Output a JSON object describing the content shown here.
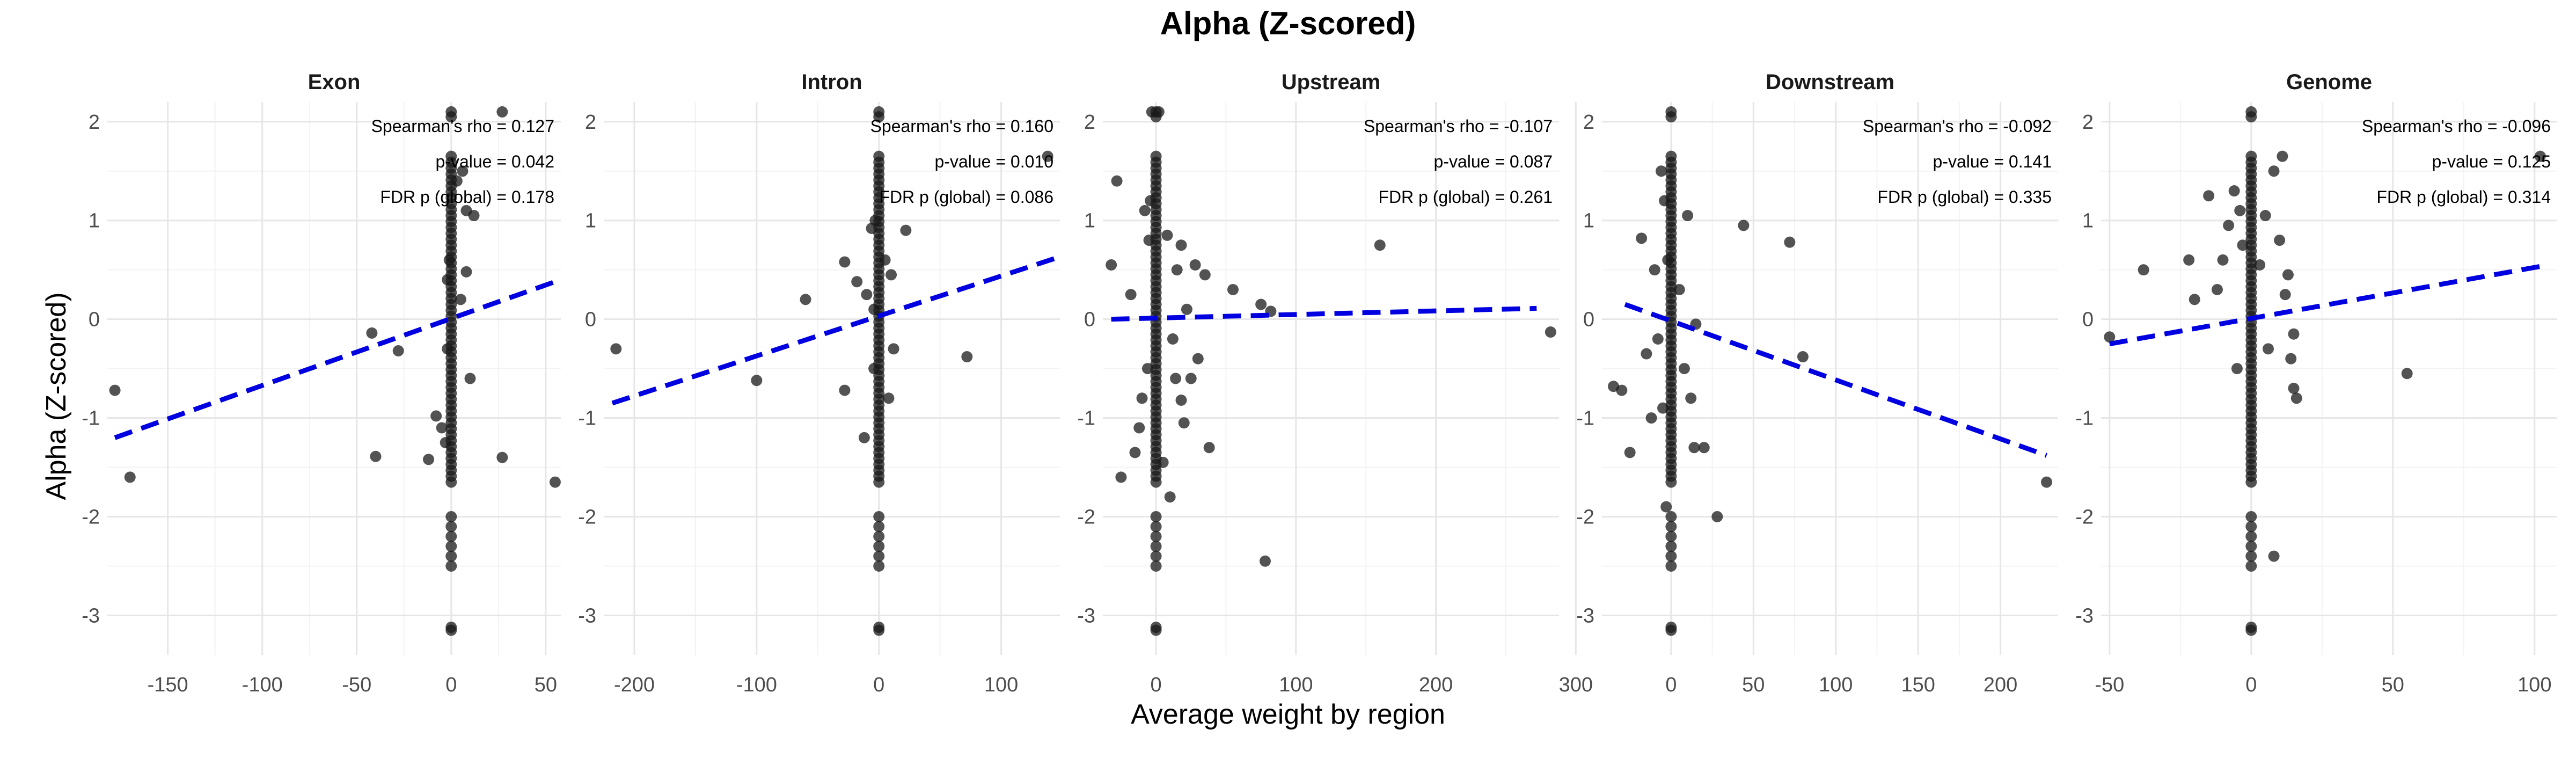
{
  "chart_data": {
    "type": "scatter",
    "title": "Alpha (Z-scored)",
    "xlabel": "Average weight by region",
    "ylabel": "Alpha (Z-scored)",
    "ylim": [
      -3.4,
      2.2
    ],
    "yticks": [
      -3,
      -2,
      -1,
      0,
      1,
      2
    ],
    "ytick_labels": [
      "-3",
      "-2",
      "-1",
      "0",
      "1",
      "2"
    ],
    "colors": {
      "points": "#1a1a1a",
      "trend": "#0000e0",
      "grid_major": "#e6e6e6",
      "grid_minor": "#f3f3f3"
    },
    "facets": [
      {
        "name": "Exon",
        "xlim": [
          -182,
          58
        ],
        "xticks": [
          -150,
          -100,
          -50,
          0,
          50
        ],
        "xtick_labels": [
          "-150",
          "-100",
          "-50",
          "0",
          "50"
        ],
        "stats": [
          "Spearman's rho = 0.127",
          "p-value = 0.042",
          "FDR p (global) = 0.178"
        ],
        "trend": {
          "x1": -178,
          "y1": -1.2,
          "x2": 55,
          "y2": 0.38
        },
        "points": [
          [
            -178,
            -0.72
          ],
          [
            -170,
            -1.6
          ],
          [
            -42,
            -0.14
          ],
          [
            -40,
            -1.39
          ],
          [
            -28,
            -0.32
          ],
          [
            -12,
            -1.42
          ],
          [
            -8,
            -0.98
          ],
          [
            -5,
            -1.1
          ],
          [
            -3,
            -1.25
          ],
          [
            -2,
            0.4
          ],
          [
            -2,
            -0.3
          ],
          [
            -1,
            0.6
          ],
          [
            3,
            1.4
          ],
          [
            5,
            0.2
          ],
          [
            6,
            1.5
          ],
          [
            8,
            1.1
          ],
          [
            8,
            0.48
          ],
          [
            10,
            -0.6
          ],
          [
            12,
            1.05
          ],
          [
            27,
            -1.4
          ],
          [
            27,
            2.1
          ],
          [
            55,
            -1.65
          ]
        ]
      },
      {
        "name": "Intron",
        "xlim": [
          -225,
          148
        ],
        "xticks": [
          -200,
          -100,
          0,
          100
        ],
        "xtick_labels": [
          "-200",
          "-100",
          "0",
          "100"
        ],
        "stats": [
          "Spearman's rho = 0.160",
          "p-value = 0.010",
          "FDR p (global) = 0.086"
        ],
        "trend": {
          "x1": -218,
          "y1": -0.85,
          "x2": 145,
          "y2": 0.62
        },
        "points": [
          [
            -215,
            -0.3
          ],
          [
            -100,
            -0.62
          ],
          [
            -60,
            0.2
          ],
          [
            -28,
            0.58
          ],
          [
            -28,
            -0.72
          ],
          [
            -18,
            0.38
          ],
          [
            -12,
            -1.2
          ],
          [
            -10,
            0.25
          ],
          [
            -6,
            0.92
          ],
          [
            -4,
            0.1
          ],
          [
            -4,
            -0.5
          ],
          [
            -3,
            1.0
          ],
          [
            5,
            0.6
          ],
          [
            8,
            -0.8
          ],
          [
            10,
            0.45
          ],
          [
            12,
            -0.3
          ],
          [
            22,
            0.9
          ],
          [
            72,
            -0.38
          ],
          [
            138,
            1.65
          ]
        ]
      },
      {
        "name": "Upstream",
        "xlim": [
          -38,
          288
        ],
        "xticks": [
          0,
          100,
          200,
          300
        ],
        "xtick_labels": [
          "0",
          "100",
          "200",
          "300"
        ],
        "stats": [
          "Spearman's rho = -0.107",
          "p-value = 0.087",
          "FDR p (global) = 0.261"
        ],
        "trend": {
          "x1": -32,
          "y1": 0.0,
          "x2": 272,
          "y2": 0.11
        },
        "points": [
          [
            -32,
            0.55
          ],
          [
            -28,
            1.4
          ],
          [
            -25,
            -1.6
          ],
          [
            -18,
            0.25
          ],
          [
            -15,
            -1.35
          ],
          [
            -12,
            -1.1
          ],
          [
            -10,
            -0.8
          ],
          [
            -8,
            1.1
          ],
          [
            -6,
            -0.5
          ],
          [
            -5,
            0.8
          ],
          [
            -4,
            1.2
          ],
          [
            -3,
            2.1
          ],
          [
            2,
            2.1
          ],
          [
            5,
            -1.45
          ],
          [
            8,
            0.85
          ],
          [
            10,
            -1.8
          ],
          [
            12,
            -0.2
          ],
          [
            14,
            -0.6
          ],
          [
            15,
            0.5
          ],
          [
            18,
            -0.82
          ],
          [
            18,
            0.75
          ],
          [
            20,
            -1.05
          ],
          [
            22,
            0.1
          ],
          [
            25,
            -0.6
          ],
          [
            28,
            0.55
          ],
          [
            30,
            -0.4
          ],
          [
            35,
            0.45
          ],
          [
            38,
            -1.3
          ],
          [
            55,
            0.3
          ],
          [
            75,
            0.15
          ],
          [
            78,
            -2.45
          ],
          [
            82,
            0.08
          ],
          [
            160,
            0.75
          ],
          [
            282,
            -0.13
          ]
        ]
      },
      {
        "name": "Downstream",
        "xlim": [
          -42,
          235
        ],
        "xticks": [
          0,
          50,
          100,
          150,
          200
        ],
        "xtick_labels": [
          "0",
          "50",
          "100",
          "150",
          "200"
        ],
        "stats": [
          "Spearman's rho = -0.092",
          "p-value = 0.141",
          "FDR p (global) = 0.335"
        ],
        "trend": {
          "x1": -28,
          "y1": 0.15,
          "x2": 228,
          "y2": -1.38
        },
        "points": [
          [
            -35,
            -0.68
          ],
          [
            -30,
            -0.72
          ],
          [
            -25,
            -1.35
          ],
          [
            -18,
            0.82
          ],
          [
            -15,
            -0.35
          ],
          [
            -12,
            -1.0
          ],
          [
            -10,
            0.5
          ],
          [
            -8,
            -0.2
          ],
          [
            -6,
            1.5
          ],
          [
            -5,
            -0.9
          ],
          [
            -4,
            1.2
          ],
          [
            -3,
            -1.9
          ],
          [
            -2,
            0.6
          ],
          [
            5,
            0.3
          ],
          [
            8,
            -0.5
          ],
          [
            10,
            1.05
          ],
          [
            12,
            -0.8
          ],
          [
            14,
            -1.3
          ],
          [
            15,
            -0.05
          ],
          [
            20,
            -1.3
          ],
          [
            28,
            -2.0
          ],
          [
            44,
            0.95
          ],
          [
            72,
            0.78
          ],
          [
            80,
            -0.38
          ],
          [
            228,
            -1.65
          ]
        ]
      },
      {
        "name": "Genome",
        "xlim": [
          -53,
          108
        ],
        "xticks": [
          -50,
          0,
          50,
          100
        ],
        "xtick_labels": [
          "-50",
          "0",
          "50",
          "100"
        ],
        "stats": [
          "Spearman's rho = -0.096",
          "p-value = 0.125",
          "FDR p (global) = 0.314"
        ],
        "trend": {
          "x1": -50,
          "y1": -0.25,
          "x2": 105,
          "y2": 0.55
        },
        "points": [
          [
            -50,
            -0.18
          ],
          [
            -38,
            0.5
          ],
          [
            -22,
            0.6
          ],
          [
            -20,
            0.2
          ],
          [
            -15,
            1.25
          ],
          [
            -12,
            0.3
          ],
          [
            -10,
            0.6
          ],
          [
            -8,
            0.95
          ],
          [
            -6,
            1.3
          ],
          [
            -5,
            -0.5
          ],
          [
            -4,
            1.1
          ],
          [
            -3,
            0.75
          ],
          [
            3,
            0.55
          ],
          [
            5,
            1.05
          ],
          [
            6,
            -0.3
          ],
          [
            8,
            1.5
          ],
          [
            8,
            -2.4
          ],
          [
            10,
            0.8
          ],
          [
            11,
            1.65
          ],
          [
            12,
            0.25
          ],
          [
            13,
            0.45
          ],
          [
            14,
            -0.4
          ],
          [
            15,
            -0.7
          ],
          [
            15,
            -0.15
          ],
          [
            16,
            -0.8
          ],
          [
            55,
            -0.55
          ],
          [
            102,
            1.65
          ]
        ]
      }
    ]
  }
}
